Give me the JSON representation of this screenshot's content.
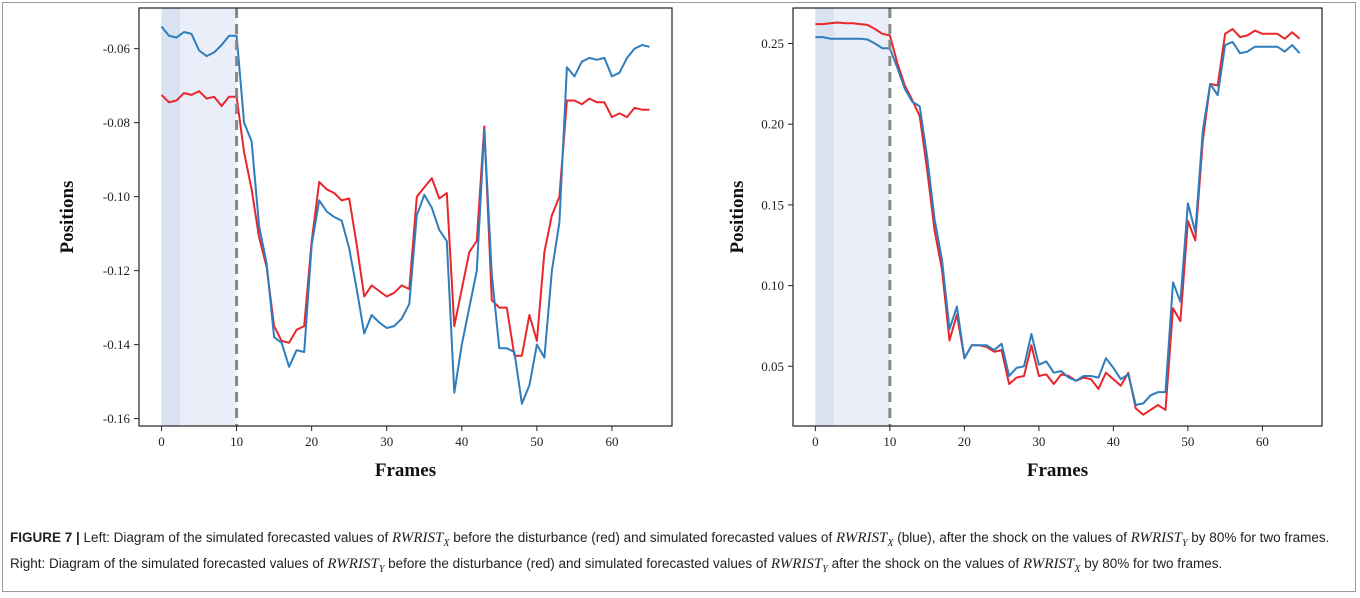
{
  "chart_data": [
    {
      "type": "line",
      "title": "",
      "xlabel": "Frames",
      "ylabel": "Positions",
      "xlim": [
        -3,
        68
      ],
      "ylim": [
        -0.162,
        -0.049
      ],
      "xticks": [
        0,
        10,
        20,
        30,
        40,
        50,
        60
      ],
      "yticks": [
        -0.16,
        -0.14,
        -0.12,
        -0.1,
        -0.08,
        -0.06
      ],
      "ytick_labels": [
        "-0.16",
        "-0.14",
        "-0.12",
        "-0.10",
        "-0.08",
        "-0.06"
      ],
      "grid": false,
      "shaded_regions": [
        [
          0,
          2.5
        ],
        [
          2.5,
          10
        ]
      ],
      "vline_x": 10,
      "series": [
        {
          "color": "#e8262b",
          "x": [
            0,
            1,
            2,
            3,
            4,
            5,
            6,
            7,
            8,
            9,
            10,
            11,
            12,
            13,
            14,
            15,
            16,
            17,
            18,
            19,
            20,
            21,
            22,
            23,
            24,
            25,
            26,
            27,
            28,
            29,
            30,
            31,
            32,
            33,
            34,
            35,
            36,
            37,
            38,
            39,
            40,
            41,
            42,
            43,
            44,
            45,
            46,
            47,
            48,
            49,
            50,
            51,
            52,
            53,
            54,
            55,
            56,
            57,
            58,
            59,
            60,
            61,
            62,
            63,
            64,
            65
          ],
          "y": [
            -0.0725,
            -0.0745,
            -0.074,
            -0.072,
            -0.0725,
            -0.0715,
            -0.0735,
            -0.073,
            -0.0755,
            -0.073,
            -0.073,
            -0.088,
            -0.098,
            -0.111,
            -0.119,
            -0.135,
            -0.139,
            -0.1395,
            -0.136,
            -0.135,
            -0.112,
            -0.096,
            -0.098,
            -0.099,
            -0.101,
            -0.1005,
            -0.113,
            -0.127,
            -0.124,
            -0.1255,
            -0.127,
            -0.126,
            -0.124,
            -0.125,
            -0.1,
            -0.0975,
            -0.095,
            -0.1005,
            -0.099,
            -0.135,
            -0.125,
            -0.115,
            -0.112,
            -0.081,
            -0.128,
            -0.13,
            -0.13,
            -0.143,
            -0.143,
            -0.132,
            -0.139,
            -0.115,
            -0.105,
            -0.1,
            -0.074,
            -0.074,
            -0.075,
            -0.0735,
            -0.0745,
            -0.0745,
            -0.0785,
            -0.0775,
            -0.0785,
            -0.076,
            -0.0765,
            -0.0765
          ]
        },
        {
          "color": "#2e7dbd",
          "x": [
            0,
            1,
            2,
            3,
            4,
            5,
            6,
            7,
            8,
            9,
            10,
            11,
            12,
            13,
            14,
            15,
            16,
            17,
            18,
            19,
            20,
            21,
            22,
            23,
            24,
            25,
            26,
            27,
            28,
            29,
            30,
            31,
            32,
            33,
            34,
            35,
            36,
            37,
            38,
            39,
            40,
            41,
            42,
            43,
            44,
            45,
            46,
            47,
            48,
            49,
            50,
            51,
            52,
            53,
            54,
            55,
            56,
            57,
            58,
            59,
            60,
            61,
            62,
            63,
            64,
            65
          ],
          "y": [
            -0.054,
            -0.0565,
            -0.057,
            -0.0555,
            -0.056,
            -0.0605,
            -0.062,
            -0.061,
            -0.059,
            -0.0565,
            -0.0565,
            -0.08,
            -0.085,
            -0.108,
            -0.118,
            -0.138,
            -0.1395,
            -0.146,
            -0.1415,
            -0.142,
            -0.113,
            -0.101,
            -0.104,
            -0.1055,
            -0.1065,
            -0.114,
            -0.125,
            -0.137,
            -0.132,
            -0.134,
            -0.1355,
            -0.135,
            -0.133,
            -0.129,
            -0.105,
            -0.0995,
            -0.103,
            -0.109,
            -0.112,
            -0.153,
            -0.14,
            -0.13,
            -0.12,
            -0.082,
            -0.121,
            -0.141,
            -0.141,
            -0.142,
            -0.156,
            -0.151,
            -0.14,
            -0.1435,
            -0.12,
            -0.107,
            -0.065,
            -0.0675,
            -0.0635,
            -0.0625,
            -0.063,
            -0.0625,
            -0.0675,
            -0.0665,
            -0.0625,
            -0.06,
            -0.059,
            -0.0595
          ]
        }
      ]
    },
    {
      "type": "line",
      "title": "",
      "xlabel": "Frames",
      "ylabel": "Positions",
      "xlim": [
        -3,
        68
      ],
      "ylim": [
        0.013,
        0.272
      ],
      "xticks": [
        0,
        10,
        20,
        30,
        40,
        50,
        60
      ],
      "yticks": [
        0.05,
        0.1,
        0.15,
        0.2,
        0.25
      ],
      "ytick_labels": [
        "0.05",
        "0.10",
        "0.15",
        "0.20",
        "0.25"
      ],
      "grid": false,
      "shaded_regions": [
        [
          0,
          2.5
        ],
        [
          2.5,
          10
        ]
      ],
      "vline_x": 10,
      "series": [
        {
          "color": "#e8262b",
          "x": [
            0,
            1,
            2,
            3,
            4,
            5,
            6,
            7,
            8,
            9,
            10,
            11,
            12,
            13,
            14,
            15,
            16,
            17,
            18,
            19,
            20,
            21,
            22,
            23,
            24,
            25,
            26,
            27,
            28,
            29,
            30,
            31,
            32,
            33,
            34,
            35,
            36,
            37,
            38,
            39,
            40,
            41,
            42,
            43,
            44,
            45,
            46,
            47,
            48,
            49,
            50,
            51,
            52,
            53,
            54,
            55,
            56,
            57,
            58,
            59,
            60,
            61,
            62,
            63,
            64,
            65
          ],
          "y": [
            0.262,
            0.262,
            0.2625,
            0.263,
            0.2625,
            0.2625,
            0.262,
            0.2615,
            0.259,
            0.256,
            0.255,
            0.238,
            0.224,
            0.215,
            0.205,
            0.172,
            0.134,
            0.11,
            0.066,
            0.082,
            0.055,
            0.063,
            0.063,
            0.062,
            0.059,
            0.06,
            0.039,
            0.043,
            0.044,
            0.063,
            0.044,
            0.045,
            0.039,
            0.045,
            0.044,
            0.041,
            0.043,
            0.042,
            0.036,
            0.046,
            0.042,
            0.038,
            0.046,
            0.024,
            0.02,
            0.023,
            0.026,
            0.023,
            0.086,
            0.078,
            0.14,
            0.128,
            0.19,
            0.225,
            0.224,
            0.256,
            0.259,
            0.254,
            0.255,
            0.258,
            0.256,
            0.256,
            0.256,
            0.253,
            0.257,
            0.253
          ]
        },
        {
          "color": "#2e7dbd",
          "x": [
            0,
            1,
            2,
            3,
            4,
            5,
            6,
            7,
            8,
            9,
            10,
            11,
            12,
            13,
            14,
            15,
            16,
            17,
            18,
            19,
            20,
            21,
            22,
            23,
            24,
            25,
            26,
            27,
            28,
            29,
            30,
            31,
            32,
            33,
            34,
            35,
            36,
            37,
            38,
            39,
            40,
            41,
            42,
            43,
            44,
            45,
            46,
            47,
            48,
            49,
            50,
            51,
            52,
            53,
            54,
            55,
            56,
            57,
            58,
            59,
            60,
            61,
            62,
            63,
            64,
            65
          ],
          "y": [
            0.254,
            0.254,
            0.253,
            0.253,
            0.253,
            0.253,
            0.253,
            0.2525,
            0.25,
            0.247,
            0.247,
            0.235,
            0.222,
            0.214,
            0.211,
            0.18,
            0.141,
            0.116,
            0.073,
            0.087,
            0.055,
            0.063,
            0.063,
            0.063,
            0.06,
            0.064,
            0.044,
            0.049,
            0.05,
            0.07,
            0.051,
            0.053,
            0.046,
            0.047,
            0.043,
            0.041,
            0.044,
            0.044,
            0.043,
            0.055,
            0.049,
            0.042,
            0.045,
            0.026,
            0.027,
            0.032,
            0.034,
            0.034,
            0.102,
            0.09,
            0.151,
            0.133,
            0.196,
            0.225,
            0.218,
            0.249,
            0.251,
            0.244,
            0.245,
            0.248,
            0.248,
            0.248,
            0.248,
            0.245,
            0.249,
            0.244
          ]
        }
      ]
    }
  ],
  "caption": {
    "figure_label": "FIGURE 7 |",
    "parts": [
      {
        "t": "text",
        "v": " Left: Diagram of the simulated forecasted values of "
      },
      {
        "t": "math",
        "v": "RWRIST",
        "sub": "X"
      },
      {
        "t": "text",
        "v": " before the disturbance (red) and simulated forecasted values of "
      },
      {
        "t": "math",
        "v": "RWRIST",
        "sub": "X"
      },
      {
        "t": "text",
        "v": " (blue), after the shock on the values of "
      },
      {
        "t": "math",
        "v": "RWRIST",
        "sub": "Y"
      },
      {
        "t": "text",
        "v": " by 80% for two frames. Right: Diagram of the simulated forecasted values of "
      },
      {
        "t": "math",
        "v": "RWRIST",
        "sub": "Y"
      },
      {
        "t": "text",
        "v": " before the disturbance (red) and simulated forecasted values of "
      },
      {
        "t": "math",
        "v": "RWRIST",
        "sub": "Y"
      },
      {
        "t": "text",
        "v": " after the shock on the values of "
      },
      {
        "t": "math",
        "v": "RWRIST",
        "sub": "X"
      },
      {
        "t": "text",
        "v": " by 80% for two frames."
      }
    ]
  }
}
